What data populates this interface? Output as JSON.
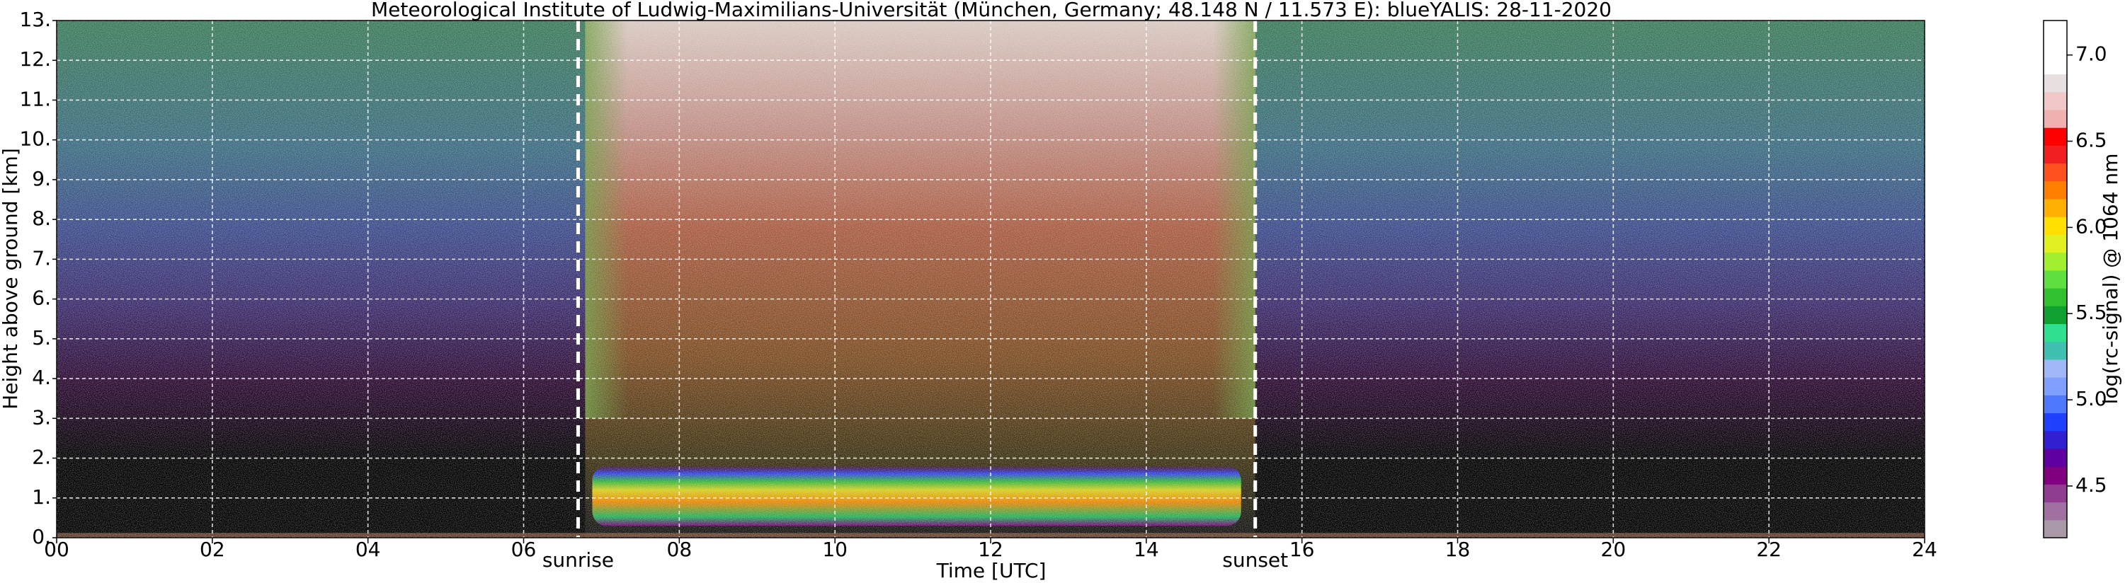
{
  "chart_data": {
    "type": "heatmap",
    "title": "Meteorological Institute of Ludwig-Maximilians-Universität (München, Germany; 48.148 N / 11.573 E):    blueYALIS: 28-11-2020",
    "xlabel": "Time [UTC]",
    "ylabel": "Height above ground [km]",
    "xlim": [
      0,
      24
    ],
    "xticks": [
      {
        "value": 0,
        "label": "00"
      },
      {
        "value": 2,
        "label": "02"
      },
      {
        "value": 4,
        "label": "04"
      },
      {
        "value": 6,
        "label": "06"
      },
      {
        "value": 8,
        "label": "08"
      },
      {
        "value": 10,
        "label": "10"
      },
      {
        "value": 12,
        "label": "12"
      },
      {
        "value": 14,
        "label": "14"
      },
      {
        "value": 16,
        "label": "16"
      },
      {
        "value": 18,
        "label": "18"
      },
      {
        "value": 20,
        "label": "20"
      },
      {
        "value": 22,
        "label": "22"
      },
      {
        "value": 24,
        "label": "24"
      }
    ],
    "ylim": [
      0,
      13
    ],
    "yticks": [
      {
        "value": 0,
        "label": "0."
      },
      {
        "value": 1,
        "label": "1."
      },
      {
        "value": 2,
        "label": "2."
      },
      {
        "value": 3,
        "label": "3."
      },
      {
        "value": 4,
        "label": "4."
      },
      {
        "value": 5,
        "label": "5."
      },
      {
        "value": 6,
        "label": "6."
      },
      {
        "value": 7,
        "label": "7."
      },
      {
        "value": 8,
        "label": "8."
      },
      {
        "value": 9,
        "label": "9."
      },
      {
        "value": 10,
        "label": "10."
      },
      {
        "value": 11,
        "label": "11."
      },
      {
        "value": 12,
        "label": "12."
      },
      {
        "value": 13,
        "label": "13."
      }
    ],
    "grid": true,
    "annotations": [
      {
        "text": "sunrise",
        "x": 6.7
      },
      {
        "text": "sunset",
        "x": 15.4
      }
    ],
    "colorbar": {
      "label": "log(rc-signal) @ 1064 nm",
      "lim": [
        4.2,
        7.2
      ],
      "ticks": [
        4.5,
        {
          "value": 5,
          "label": "5.0"
        },
        5.5,
        {
          "value": 6,
          "label": "6.0"
        },
        6.5,
        {
          "value": 7,
          "label": "7.0"
        }
      ],
      "colors": [
        "#a898a8",
        "#a070a0",
        "#903c90",
        "#800080",
        "#6000a0",
        "#3020d0",
        "#2040ff",
        "#5078ff",
        "#80a0ff",
        "#a0b8f8",
        "#40c0b0",
        "#30e090",
        "#10a030",
        "#30c030",
        "#60e040",
        "#a0f030",
        "#e0f020",
        "#ffe000",
        "#ffb000",
        "#ff8000",
        "#ff5020",
        "#f02020",
        "#ff0000",
        "#f0b0b0",
        "#f0c8c8",
        "#e8e0e0",
        "#ffffff",
        "#ffffff",
        "#ffffff"
      ]
    }
  }
}
